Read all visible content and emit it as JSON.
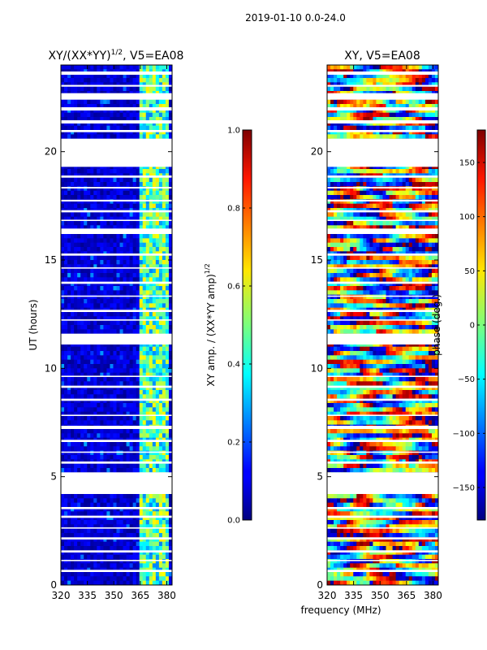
{
  "suptitle": "2019-01-10 0.0-24.0",
  "xlabel": "frequency (MHz)",
  "chart_data": [
    {
      "type": "heatmap",
      "title": "XY/(XX*YY)",
      "title_exp": "1/2",
      "title_suffix": ", V5=EA08",
      "ylabel": "UT (hours)",
      "x_ticks": [
        "320",
        "335",
        "350",
        "365",
        "380"
      ],
      "x_tick_values": [
        320,
        335,
        350,
        365,
        380
      ],
      "y_ticks": [
        "0",
        "5",
        "10",
        "15",
        "20"
      ],
      "y_tick_values": [
        0,
        5,
        10,
        15,
        20
      ],
      "xlim": [
        320,
        383
      ],
      "ylim": [
        0,
        24
      ],
      "colorbar": {
        "label": "XY amp. / (XX*YY amp)",
        "label_exp": "1/2",
        "range": [
          0.0,
          1.0
        ],
        "ticks": [
          "0.0",
          "0.2",
          "0.4",
          "0.6",
          "0.8",
          "1.0"
        ],
        "tick_values": [
          0.0,
          0.2,
          0.4,
          0.6,
          0.8,
          1.0
        ]
      },
      "description": "low amplitude (~0.05-0.15) across 320-364 MHz, elevated amplitude (~0.3-0.6) in 364-381 MHz band",
      "base_level": 0.08,
      "band_range": [
        364,
        381
      ],
      "band_level": 0.45
    },
    {
      "type": "heatmap",
      "title": "XY",
      "title_suffix": ", V5=EA08",
      "x_ticks": [
        "320",
        "335",
        "350",
        "365",
        "380"
      ],
      "x_tick_values": [
        320,
        335,
        350,
        365,
        380
      ],
      "y_ticks": [
        "0",
        "5",
        "10",
        "15",
        "20"
      ],
      "y_tick_values": [
        0,
        5,
        10,
        15,
        20
      ],
      "xlim": [
        320,
        383
      ],
      "ylim": [
        0,
        24
      ],
      "colorbar": {
        "label": "phase (deg.)",
        "range": [
          -180,
          180
        ],
        "ticks": [
          "−150",
          "−100",
          "−50",
          "0",
          "50",
          "100",
          "150"
        ],
        "tick_values": [
          -150,
          -100,
          -50,
          0,
          50,
          100,
          150
        ]
      },
      "description": "phase widely varying between -180 and 180 degrees across all frequencies and times"
    }
  ],
  "flagged_ut_ranges": [
    [
      19.3,
      20.6
    ],
    [
      11.1,
      11.6
    ],
    [
      4.2,
      5.2
    ],
    [
      23.55,
      23.7
    ],
    [
      22.4,
      22.7
    ],
    [
      21.9,
      22.05
    ],
    [
      21.3,
      21.45
    ],
    [
      18.8,
      18.9
    ],
    [
      17.2,
      17.3
    ],
    [
      16.2,
      16.45
    ],
    [
      15.2,
      15.3
    ],
    [
      13.9,
      14.0
    ],
    [
      12.6,
      12.7
    ],
    [
      9.1,
      9.2
    ],
    [
      8.5,
      8.6
    ],
    [
      7.2,
      7.35
    ],
    [
      6.6,
      6.7
    ],
    [
      5.6,
      5.7
    ],
    [
      3.5,
      3.6
    ],
    [
      3.1,
      3.2
    ],
    [
      2.1,
      2.2
    ],
    [
      1.5,
      1.6
    ],
    [
      0.6,
      0.7
    ],
    [
      23.0,
      23.08
    ],
    [
      20.9,
      21.0
    ],
    [
      18.3,
      18.37
    ],
    [
      17.7,
      17.78
    ],
    [
      16.8,
      16.86
    ],
    [
      14.6,
      14.66
    ],
    [
      13.3,
      13.36
    ],
    [
      12.2,
      12.26
    ],
    [
      9.6,
      9.66
    ],
    [
      7.8,
      7.86
    ],
    [
      6.1,
      6.16
    ],
    [
      2.6,
      2.66
    ],
    [
      1.1,
      1.16
    ]
  ]
}
